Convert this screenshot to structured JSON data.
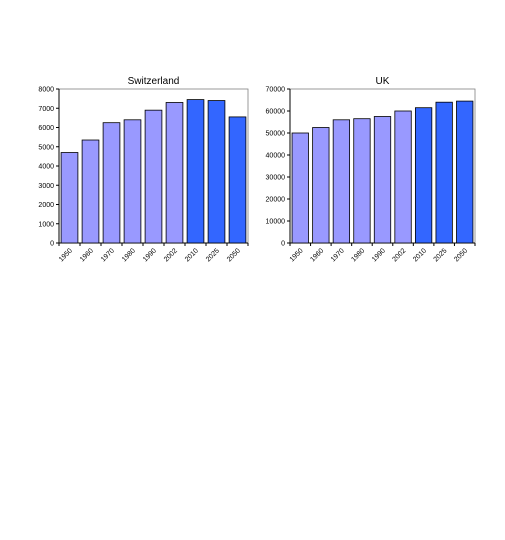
{
  "chart_data": [
    {
      "type": "bar",
      "title": "Switzerland",
      "xlabel": "",
      "ylabel": "",
      "categories": [
        "1950",
        "1960",
        "1970",
        "1980",
        "1990",
        "2002",
        "2010",
        "2025",
        "2050"
      ],
      "values": [
        4700,
        5350,
        6250,
        6400,
        6900,
        7300,
        7450,
        7400,
        6550
      ],
      "yticks": [
        "0",
        "1000",
        "2000",
        "3000",
        "4000",
        "5000",
        "6000",
        "7000",
        "8000"
      ],
      "ylim": [
        0,
        8000
      ],
      "grid": false,
      "legend": "none",
      "colors": {
        "historical": "#9999ff",
        "projected": "#3366ff"
      },
      "projected_from_index": 6
    },
    {
      "type": "bar",
      "title": "UK",
      "xlabel": "",
      "ylabel": "",
      "categories": [
        "1950",
        "1960",
        "1970",
        "1980",
        "1990",
        "2002",
        "2010",
        "2025",
        "2050"
      ],
      "values": [
        50000,
        52500,
        56000,
        56500,
        57500,
        60000,
        61500,
        64000,
        64500
      ],
      "yticks": [
        "0",
        "10000",
        "20000",
        "30000",
        "40000",
        "50000",
        "60000",
        "70000"
      ],
      "ylim": [
        0,
        70000
      ],
      "grid": false,
      "legend": "none",
      "colors": {
        "historical": "#9999ff",
        "projected": "#3366ff"
      },
      "projected_from_index": 6
    }
  ]
}
